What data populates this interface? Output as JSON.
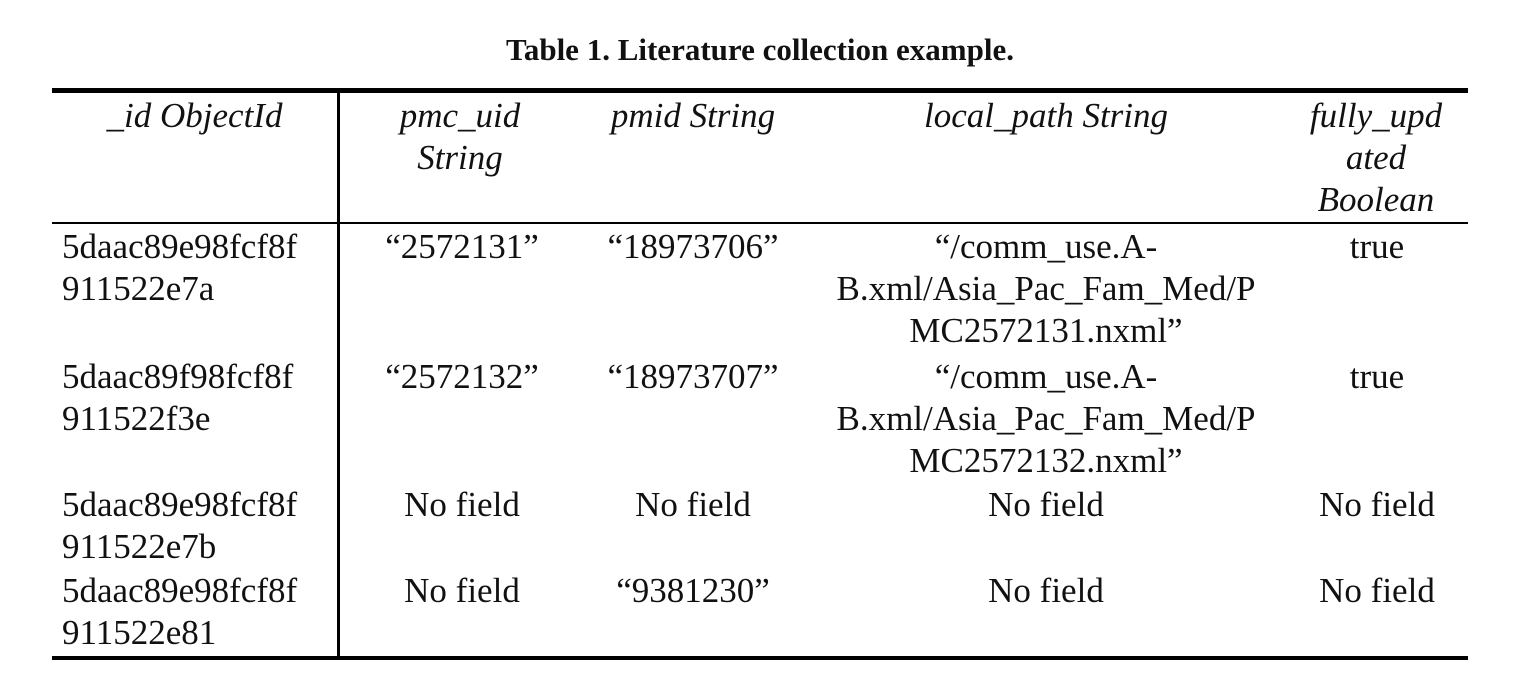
{
  "caption": "Table 1. Literature collection example.",
  "table": {
    "headers": [
      [
        "_id ObjectId"
      ],
      [
        "pmc_uid",
        "String"
      ],
      [
        "pmid String"
      ],
      [
        "local_path String"
      ],
      [
        "fully_upd",
        "ated",
        "Boolean"
      ]
    ],
    "rows": [
      {
        "id": [
          "5daac89e98fcf8f",
          "911522e7a"
        ],
        "pmc_uid": "“2572131”",
        "pmid": "“18973706”",
        "local_path": [
          "“/comm_use.A-",
          "B.xml/Asia_Pac_Fam_Med/P",
          "MC2572131.nxml”"
        ],
        "fully_updated": "true"
      },
      {
        "id": [
          "5daac89f98fcf8f",
          "911522f3e"
        ],
        "pmc_uid": "“2572132”",
        "pmid": "“18973707”",
        "local_path": [
          "“/comm_use.A-",
          "B.xml/Asia_Pac_Fam_Med/P",
          "MC2572132.nxml”"
        ],
        "fully_updated": "true"
      },
      {
        "id": [
          "5daac89e98fcf8f",
          "911522e7b"
        ],
        "pmc_uid": "No field",
        "pmid": "No field",
        "local_path": [
          "No field"
        ],
        "fully_updated": "No field"
      },
      {
        "id": [
          "5daac89e98fcf8f",
          "911522e81"
        ],
        "pmc_uid": "No field",
        "pmid": "“9381230”",
        "local_path": [
          "No field"
        ],
        "fully_updated": "No field"
      }
    ]
  }
}
